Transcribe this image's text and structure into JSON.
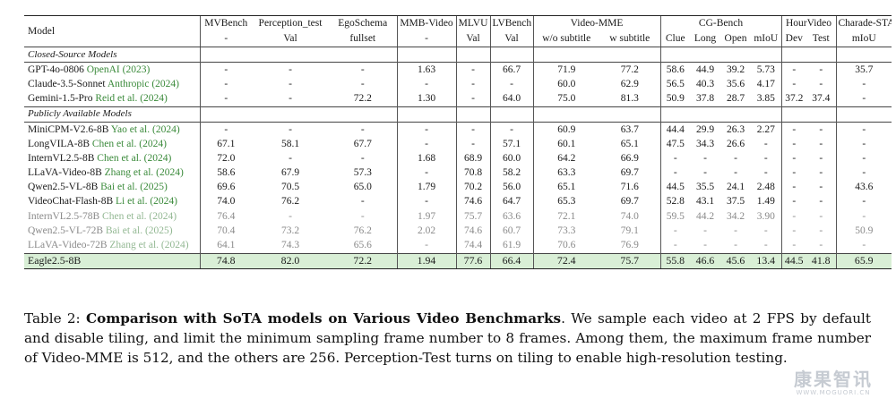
{
  "table": {
    "header1": [
      "Model",
      "MVBench",
      "Perception_test",
      "EgoSchema",
      "MMB-Video",
      "MLVU",
      "LVBench",
      "Video-MME",
      "CG-Bench",
      "HourVideo",
      "Charade-STA"
    ],
    "header2": [
      "-",
      "Val",
      "fullset",
      "-",
      "Val",
      "Val",
      "w/o subtitle",
      "w subtitle",
      "Clue",
      "Long",
      "Open",
      "mIoU",
      "Dev",
      "Test",
      "mIoU"
    ],
    "sections": [
      {
        "title": "Closed-Source Models",
        "rows": [
          {
            "model": "GPT-4o-0806",
            "cite_pre": "OpenAI (",
            "year": "2023",
            "cite_post": ")",
            "style": "normal",
            "values": [
              "-",
              "-",
              "-",
              "1.63",
              "-",
              "66.7",
              "71.9",
              "77.2",
              "58.6",
              "44.9",
              "39.2",
              "5.73",
              "-",
              "-",
              "35.7"
            ]
          },
          {
            "model": "Claude-3.5-Sonnet",
            "cite_pre": "Anthropic (",
            "year": "2024",
            "cite_post": ")",
            "style": "normal",
            "values": [
              "-",
              "-",
              "-",
              "-",
              "-",
              "-",
              "60.0",
              "62.9",
              "56.5",
              "40.3",
              "35.6",
              "4.17",
              "-",
              "-",
              "-"
            ]
          },
          {
            "model": "Gemini-1.5-Pro",
            "cite_pre": "Reid et al. (",
            "year": "2024",
            "cite_post": ")",
            "style": "normal",
            "values": [
              "-",
              "-",
              "72.2",
              "1.30",
              "-",
              "64.0",
              "75.0",
              "81.3",
              "50.9",
              "37.8",
              "28.7",
              "3.85",
              "37.2",
              "37.4",
              "-"
            ]
          }
        ]
      },
      {
        "title": "Publicly Available Models",
        "rows": [
          {
            "model": "MiniCPM-V2.6-8B",
            "cite_pre": "Yao et al. (",
            "year": "2024",
            "cite_post": ")",
            "style": "normal",
            "values": [
              "-",
              "-",
              "-",
              "-",
              "-",
              "-",
              "60.9",
              "63.7",
              "44.4",
              "29.9",
              "26.3",
              "2.27",
              "-",
              "-",
              "-"
            ]
          },
          {
            "model": "LongVILA-8B",
            "cite_pre": "Chen et al. (",
            "year": "2024",
            "cite_post": ")",
            "style": "normal",
            "values": [
              "67.1",
              "58.1",
              "67.7",
              "-",
              "-",
              "57.1",
              "60.1",
              "65.1",
              "47.5",
              "34.3",
              "26.6",
              "-",
              "-",
              "-",
              "-"
            ]
          },
          {
            "model": "InternVL2.5-8B",
            "cite_pre": "Chen et al. (",
            "year": "2024",
            "cite_post": ")",
            "style": "normal",
            "values": [
              "72.0",
              "-",
              "-",
              "1.68",
              "68.9",
              "60.0",
              "64.2",
              "66.9",
              "-",
              "-",
              "-",
              "-",
              "-",
              "-",
              "-"
            ]
          },
          {
            "model": "LLaVA-Video-8B",
            "cite_pre": "Zhang et al. (",
            "year": "2024",
            "cite_post": ")",
            "style": "normal",
            "values": [
              "58.6",
              "67.9",
              "57.3",
              "-",
              "70.8",
              "58.2",
              "63.3",
              "69.7",
              "-",
              "-",
              "-",
              "-",
              "-",
              "-",
              "-"
            ]
          },
          {
            "model": "Qwen2.5-VL-8B",
            "cite_pre": "Bai et al. (",
            "year": "2025",
            "cite_post": ")",
            "style": "normal",
            "values": [
              "69.6",
              "70.5",
              "65.0",
              "1.79",
              "70.2",
              "56.0",
              "65.1",
              "71.6",
              "44.5",
              "35.5",
              "24.1",
              "2.48",
              "-",
              "-",
              "43.6"
            ]
          },
          {
            "model": "VideoChat-Flash-8B",
            "cite_pre": "Li et al. (",
            "year": "2024",
            "cite_post": ")",
            "style": "normal",
            "values": [
              "74.0",
              "76.2",
              "-",
              "-",
              "74.6",
              "64.7",
              "65.3",
              "69.7",
              "52.8",
              "43.1",
              "37.5",
              "1.49",
              "-",
              "-",
              "-"
            ]
          },
          {
            "model": "InternVL2.5-78B",
            "cite_pre": "Chen et al. (",
            "year": "2024",
            "cite_post": ")",
            "style": "gray",
            "values": [
              "76.4",
              "-",
              "-",
              "1.97",
              "75.7",
              "63.6",
              "72.1",
              "74.0",
              "59.5",
              "44.2",
              "34.2",
              "3.90",
              "-",
              "-",
              "-"
            ]
          },
          {
            "model": "Qwen2.5-VL-72B",
            "cite_pre": "Bai et al. (",
            "year": "2025",
            "cite_post": ")",
            "style": "gray",
            "values": [
              "70.4",
              "73.2",
              "76.2",
              "2.02",
              "74.6",
              "60.7",
              "73.3",
              "79.1",
              "-",
              "-",
              "-",
              "-",
              "-",
              "-",
              "50.9"
            ]
          },
          {
            "model": "LLaVA-Video-72B",
            "cite_pre": "Zhang et al. (",
            "year": "2024",
            "cite_post": ")",
            "style": "gray",
            "values": [
              "64.1",
              "74.3",
              "65.6",
              "-",
              "74.4",
              "61.9",
              "70.6",
              "76.9",
              "-",
              "-",
              "-",
              "-",
              "-",
              "-",
              "-"
            ]
          }
        ]
      }
    ],
    "highlight": {
      "model": "Eagle2.5-8B",
      "values": [
        "74.8",
        "82.0",
        "72.2",
        "1.94",
        "77.6",
        "66.4",
        "72.4",
        "75.7",
        "55.8",
        "46.6",
        "45.6",
        "13.4",
        "44.5",
        "41.8",
        "65.9"
      ]
    }
  },
  "caption": {
    "label": "Table 2: ",
    "bold": "Comparison with SoTA models on Various Video Benchmarks",
    "text": ". We sample each video at 2 FPS by default and disable tiling, and limit the minimum sampling frame number to 8 frames. Among them, the maximum frame number of Video-MME is 512, and the others are 256. Perception-Test turns on tiling to enable high-resolution testing."
  },
  "watermark": {
    "main": "康果智讯",
    "sub": "WWW.MOGUORI.CN"
  },
  "colors": {
    "citation": "#3a8a3a",
    "highlight_row": "#d9efd6",
    "gray_text": "#8a8a8a"
  }
}
